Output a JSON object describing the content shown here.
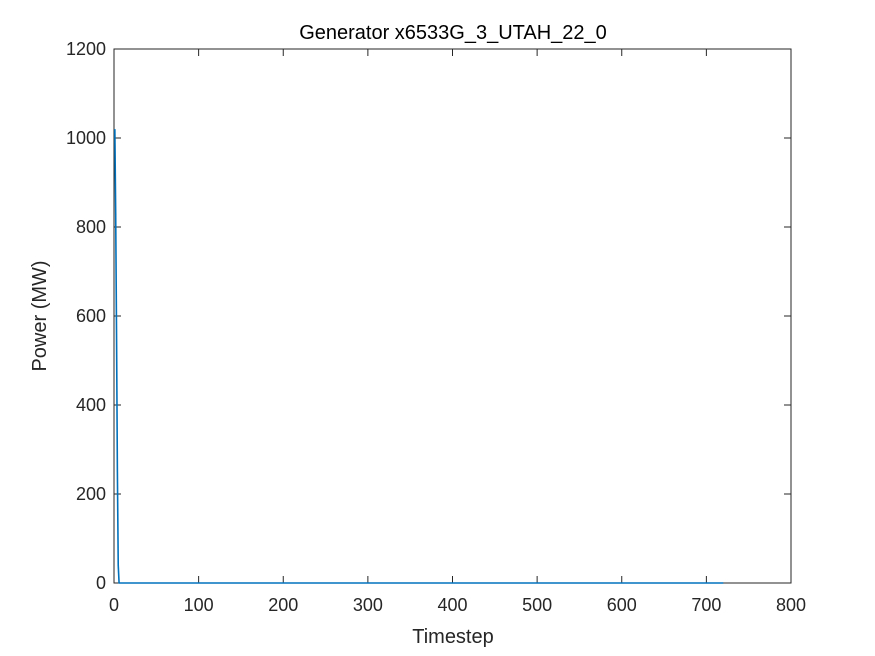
{
  "chart_data": {
    "type": "line",
    "title": "Generator x6533G_3_UTAH_22_0",
    "xlabel": "Timestep",
    "ylabel": "Power (MW)",
    "xlim": [
      0,
      800
    ],
    "ylim": [
      0,
      1200
    ],
    "xticks": [
      0,
      100,
      200,
      300,
      400,
      500,
      600,
      700,
      800
    ],
    "yticks": [
      0,
      200,
      400,
      600,
      800,
      1000,
      1200
    ],
    "grid": false,
    "box": true,
    "series": [
      {
        "color": "#0072BD",
        "x": [
          1,
          2,
          3,
          4,
          5,
          6,
          7,
          720
        ],
        "y": [
          1020,
          830,
          560,
          250,
          40,
          0,
          0,
          0
        ]
      }
    ]
  }
}
